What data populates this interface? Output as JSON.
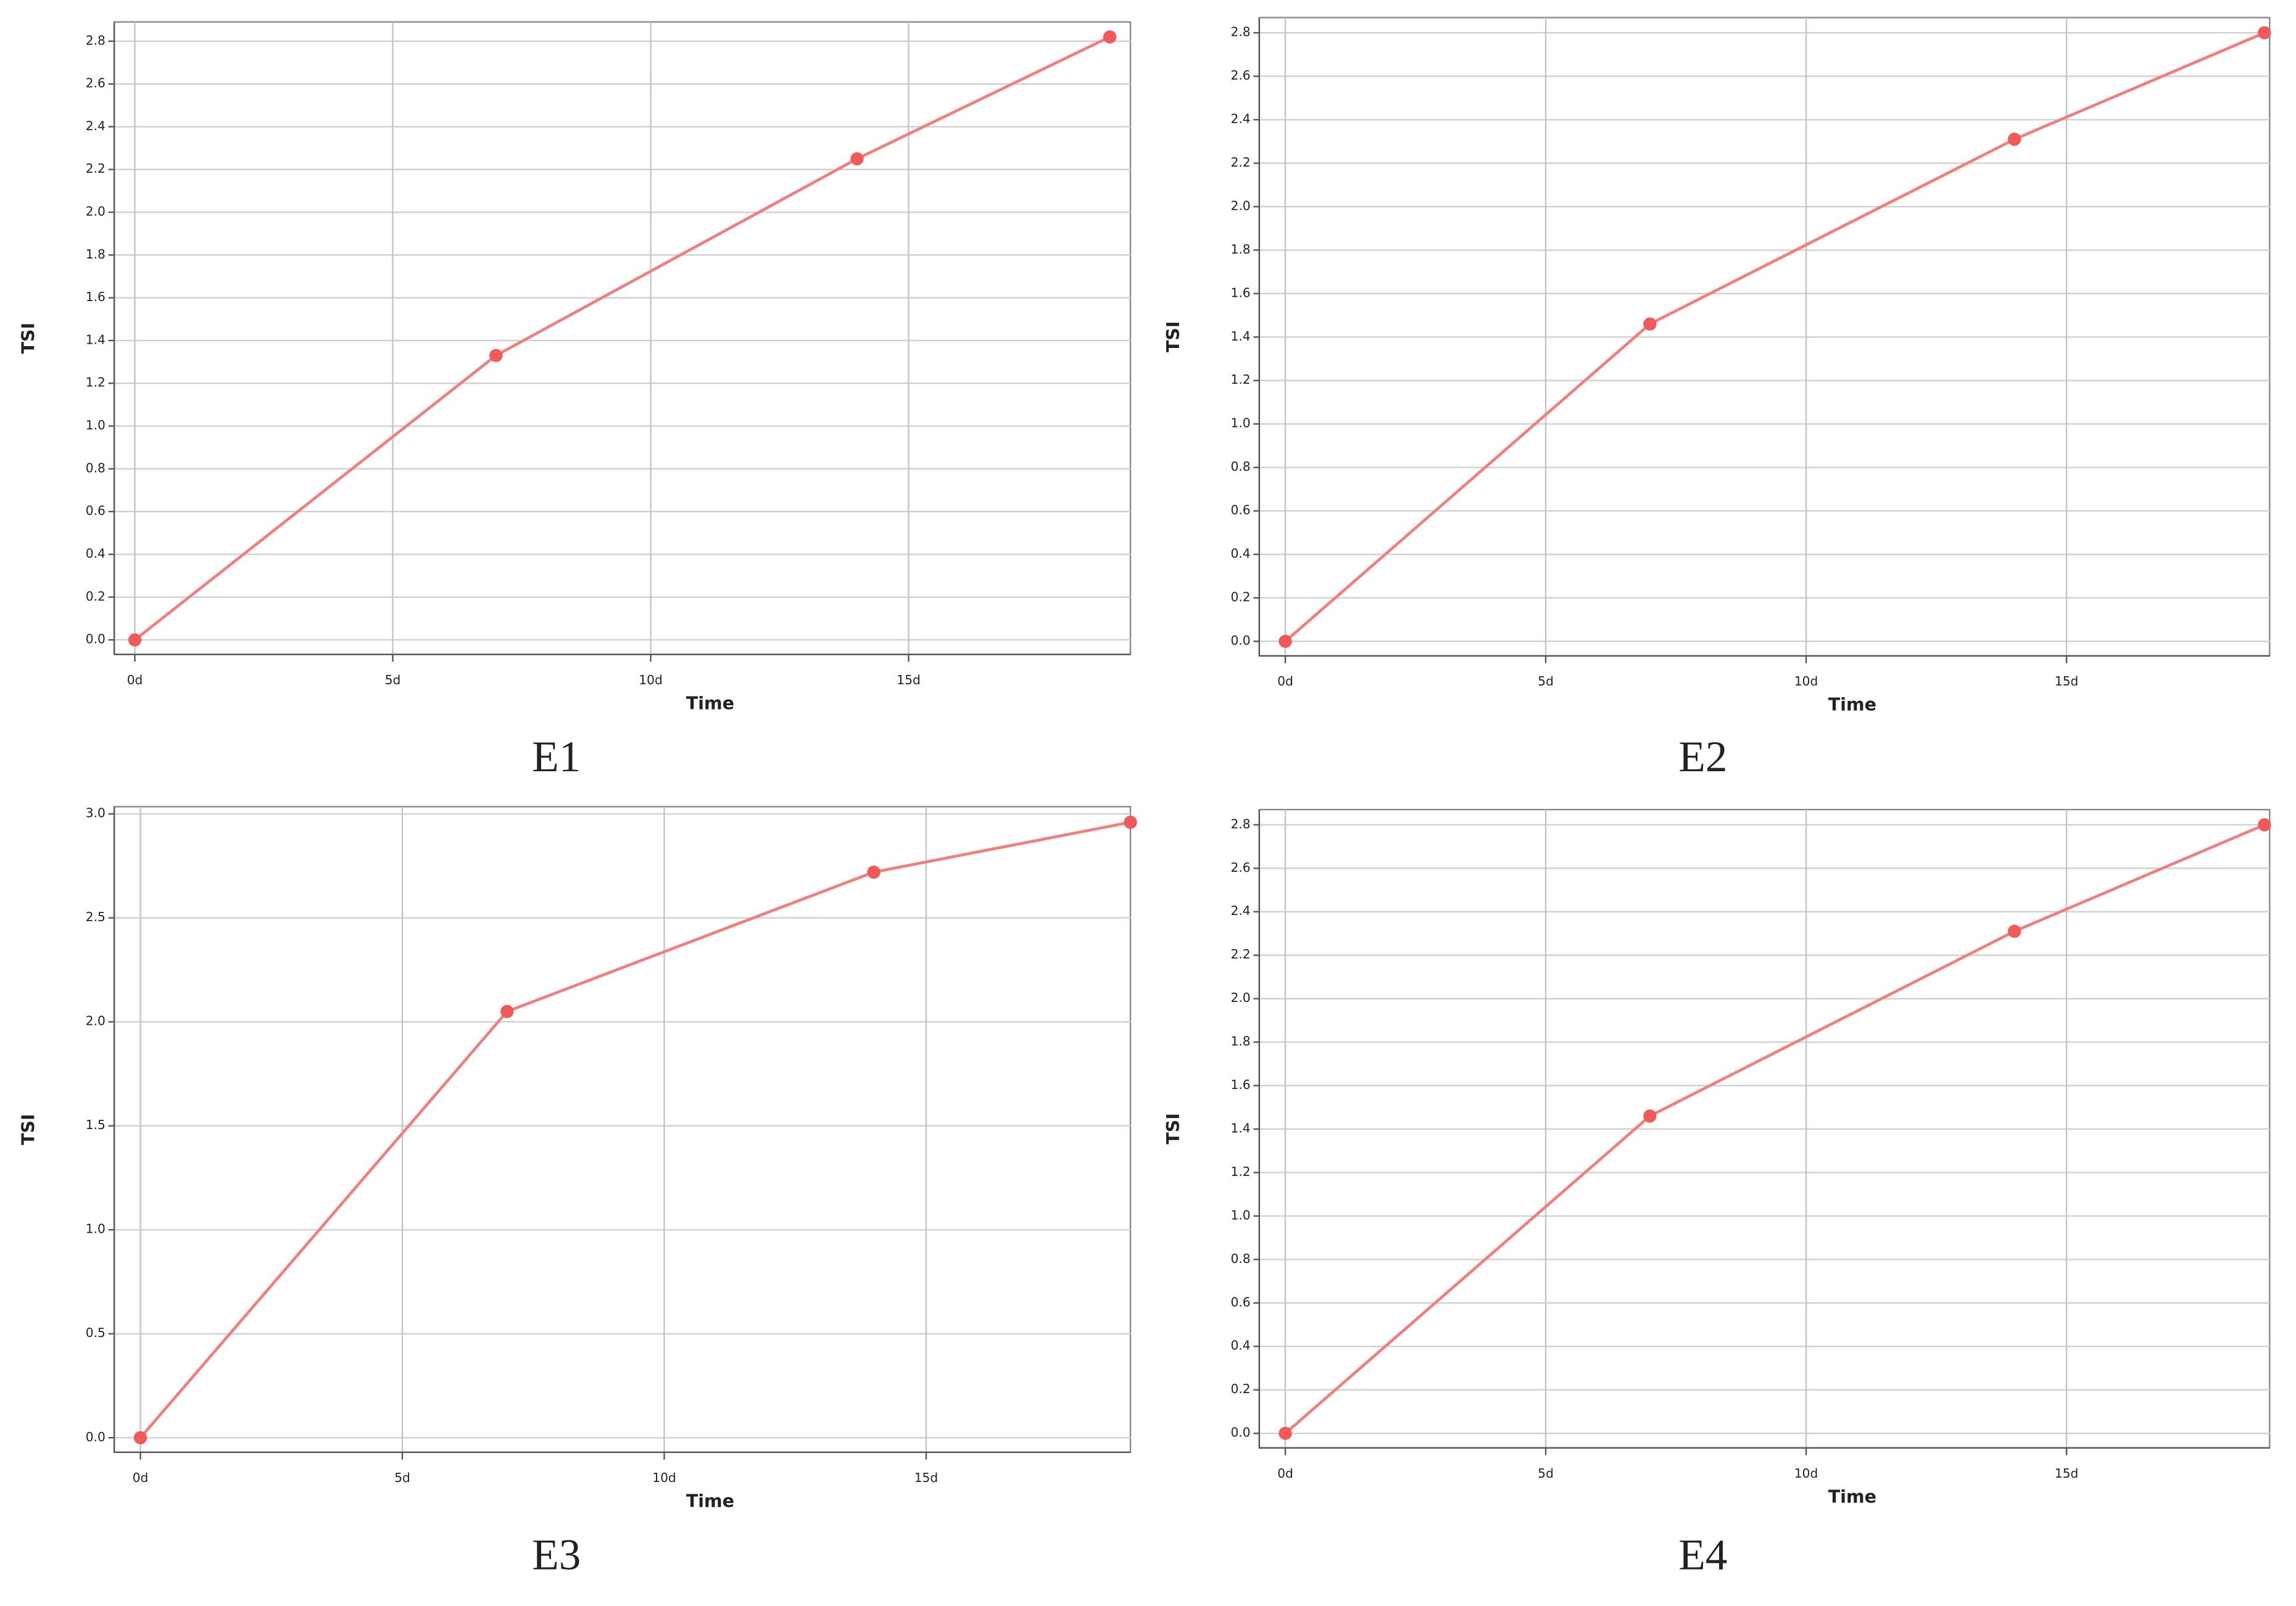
{
  "chart_data": [
    {
      "type": "line",
      "caption": "E1",
      "x_label": "Time",
      "y_label": "TSI",
      "color": "#f08080",
      "marker_color": "#f05a5a",
      "grid": true,
      "x": [
        0,
        7,
        14,
        18.9
      ],
      "values": [
        0,
        1.33,
        2.25,
        2.82
      ],
      "xlim": [
        -0.4,
        19.3
      ],
      "xticks": [
        {
          "value": 0,
          "label": "0d"
        },
        {
          "value": 5,
          "label": "5d"
        },
        {
          "value": 10,
          "label": "10d"
        },
        {
          "value": 15,
          "label": "15d"
        }
      ],
      "ylim": [
        -0.068,
        2.89
      ],
      "yticks": [
        {
          "value": 0,
          "label": "0.0"
        },
        0.2,
        0.4,
        0.6,
        0.8,
        {
          "value": 1,
          "label": "1.0"
        },
        1.2,
        1.4,
        1.6,
        1.8,
        {
          "value": 2,
          "label": "2.0"
        },
        2.2,
        2.4,
        2.6,
        2.8
      ]
    },
    {
      "type": "line",
      "caption": "E2",
      "x_label": "Time",
      "y_label": "TSI",
      "color": "#f08080",
      "marker_color": "#f05a5a",
      "grid": true,
      "x": [
        0,
        7,
        14,
        18.8
      ],
      "values": [
        0,
        1.46,
        2.31,
        2.8
      ],
      "xlim": [
        -0.5,
        18.9
      ],
      "xticks": [
        {
          "value": 0,
          "label": "0d"
        },
        {
          "value": 5,
          "label": "5d"
        },
        {
          "value": 10,
          "label": "10d"
        },
        {
          "value": 15,
          "label": "15d"
        }
      ],
      "ylim": [
        -0.067,
        2.87
      ],
      "yticks": [
        {
          "value": 0,
          "label": "0.0"
        },
        0.2,
        0.4,
        0.6,
        0.8,
        {
          "value": 1,
          "label": "1.0"
        },
        1.2,
        1.4,
        1.6,
        1.8,
        {
          "value": 2,
          "label": "2.0"
        },
        2.2,
        2.4,
        2.6,
        2.8
      ]
    },
    {
      "type": "line",
      "caption": "E3",
      "x_label": "Time",
      "y_label": "TSI",
      "color": "#f08080",
      "marker_color": "#f05a5a",
      "grid": true,
      "x": [
        0,
        7,
        14,
        18.9
      ],
      "values": [
        0,
        2.05,
        2.72,
        2.96
      ],
      "xlim": [
        -0.5,
        18.9
      ],
      "xticks": [
        {
          "value": 0,
          "label": "0d"
        },
        {
          "value": 5,
          "label": "5d"
        },
        {
          "value": 10,
          "label": "10d"
        },
        {
          "value": 15,
          "label": "15d"
        }
      ],
      "ylim": [
        -0.07,
        3.035
      ],
      "yticks": [
        {
          "value": 0,
          "label": "0.0"
        },
        0.5,
        {
          "value": 1,
          "label": "1.0"
        },
        1.5,
        {
          "value": 2,
          "label": "2.0"
        },
        2.5,
        {
          "value": 3,
          "label": "3.0"
        }
      ]
    },
    {
      "type": "line",
      "caption": "E4",
      "x_label": "Time",
      "y_label": "TSI",
      "color": "#f08080",
      "marker_color": "#f05a5a",
      "grid": true,
      "x": [
        0,
        7,
        14,
        18.8
      ],
      "values": [
        0,
        1.46,
        2.31,
        2.8
      ],
      "xlim": [
        -0.5,
        18.9
      ],
      "xticks": [
        {
          "value": 0,
          "label": "0d"
        },
        {
          "value": 5,
          "label": "5d"
        },
        {
          "value": 10,
          "label": "10d"
        },
        {
          "value": 15,
          "label": "15d"
        }
      ],
      "ylim": [
        -0.067,
        2.87
      ],
      "yticks": [
        {
          "value": 0,
          "label": "0.0"
        },
        0.2,
        0.4,
        0.6,
        0.8,
        {
          "value": 1,
          "label": "1.0"
        },
        1.2,
        1.4,
        1.6,
        1.8,
        {
          "value": 2,
          "label": "2.0"
        },
        2.2,
        2.4,
        2.6,
        2.8
      ]
    }
  ]
}
